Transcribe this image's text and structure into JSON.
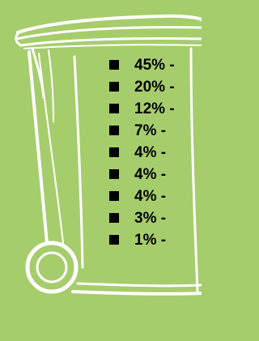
{
  "list": {
    "items": [
      "45% -",
      "20% -",
      "12% -",
      "7% -",
      "4% -",
      "4% -",
      "4% -",
      "3% -",
      "1% -"
    ]
  }
}
